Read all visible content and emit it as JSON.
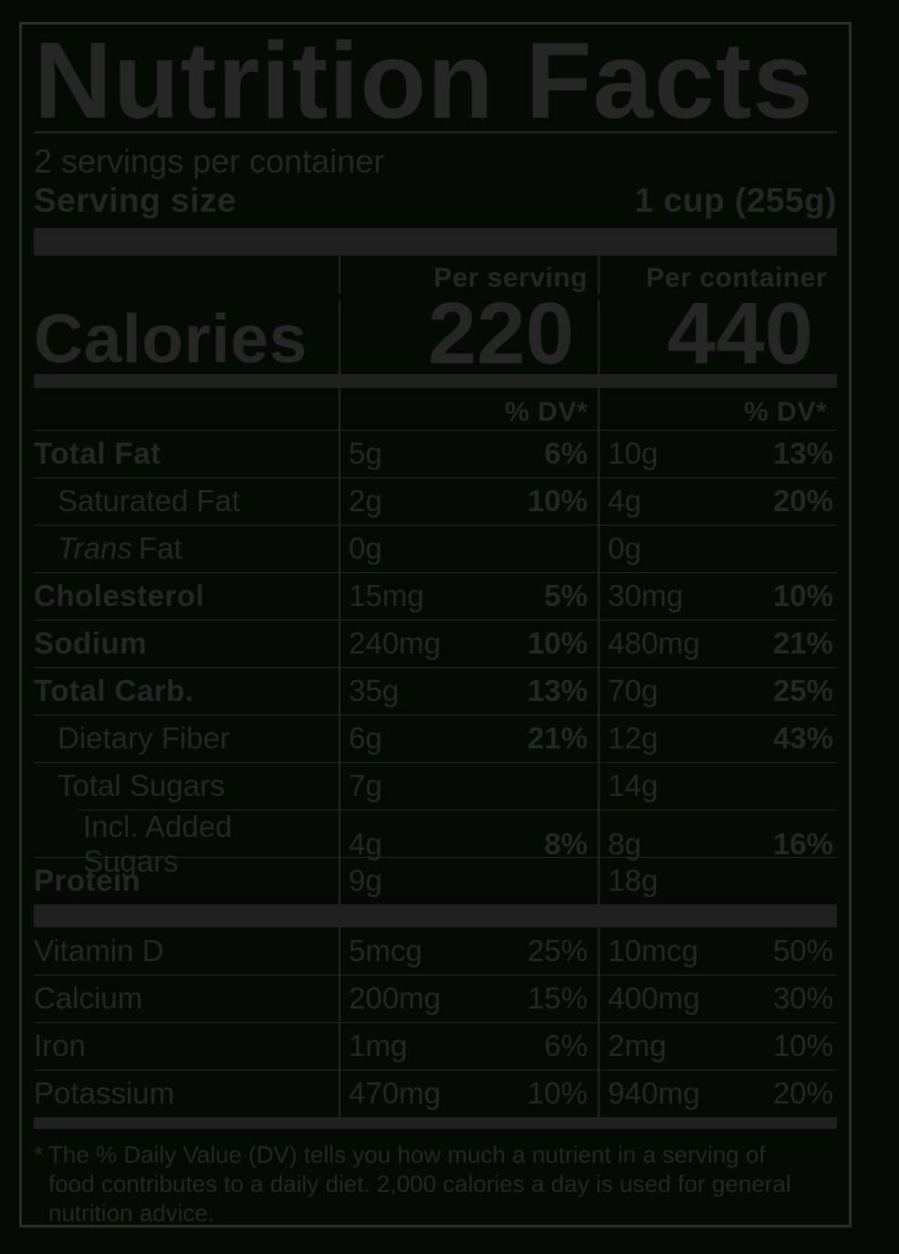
{
  "label": {
    "title": "Nutrition Facts",
    "servings_per_container": "2 servings per container",
    "serving_size_label": "Serving size",
    "serving_size_value": "1 cup (255g)",
    "calories": {
      "label": "Calories",
      "per_serving_header": "Per serving",
      "per_container_header": "Per container",
      "per_serving_value": "220",
      "per_container_value": "440"
    },
    "dv_header_serving": "% DV*",
    "dv_header_container": "% DV*",
    "nutrients": [
      {
        "name": "Total Fat",
        "serving_amount": "5g",
        "serving_dv": "6%",
        "container_amount": "10g",
        "container_dv": "13%"
      },
      {
        "name": "Saturated Fat",
        "serving_amount": "2g",
        "serving_dv": "10%",
        "container_amount": "4g",
        "container_dv": "20%"
      },
      {
        "name_prefix_italic": "Trans",
        "name_rest": "Fat",
        "serving_amount": "0g",
        "serving_dv": "",
        "container_amount": "0g",
        "container_dv": ""
      },
      {
        "name": "Cholesterol",
        "serving_amount": "15mg",
        "serving_dv": "5%",
        "container_amount": "30mg",
        "container_dv": "10%"
      },
      {
        "name": "Sodium",
        "serving_amount": "240mg",
        "serving_dv": "10%",
        "container_amount": "480mg",
        "container_dv": "21%"
      },
      {
        "name": "Total Carb.",
        "serving_amount": "35g",
        "serving_dv": "13%",
        "container_amount": "70g",
        "container_dv": "25%"
      },
      {
        "name": "Dietary Fiber",
        "serving_amount": "6g",
        "serving_dv": "21%",
        "container_amount": "12g",
        "container_dv": "43%"
      },
      {
        "name": "Total Sugars",
        "serving_amount": "7g",
        "serving_dv": "",
        "container_amount": "14g",
        "container_dv": ""
      },
      {
        "name": "Incl. Added Sugars",
        "serving_amount": "4g",
        "serving_dv": "8%",
        "container_amount": "8g",
        "container_dv": "16%"
      },
      {
        "name": "Protein",
        "serving_amount": "9g",
        "serving_dv": "",
        "container_amount": "18g",
        "container_dv": ""
      }
    ],
    "vitamins": [
      {
        "name": "Vitamin D",
        "serving_amount": "5mcg",
        "serving_dv": "25%",
        "container_amount": "10mcg",
        "container_dv": "50%"
      },
      {
        "name": "Calcium",
        "serving_amount": "200mg",
        "serving_dv": "15%",
        "container_amount": "400mg",
        "container_dv": "30%"
      },
      {
        "name": "Iron",
        "serving_amount": "1mg",
        "serving_dv": "6%",
        "container_amount": "2mg",
        "container_dv": "10%"
      },
      {
        "name": "Potassium",
        "serving_amount": "470mg",
        "serving_dv": "10%",
        "container_amount": "940mg",
        "container_dv": "20%"
      }
    ],
    "footnote_marker": "*",
    "footnote_lines": [
      "The % Daily Value (DV) tells you how much a nutrient in a serving of",
      "food contributes to a daily diet. 2,000 calories a day is used for general",
      "nutrition advice."
    ],
    "colors": {
      "background": "#030B02",
      "ink": "#262626",
      "bar": "#212020",
      "border": "#2C2C2C"
    }
  }
}
